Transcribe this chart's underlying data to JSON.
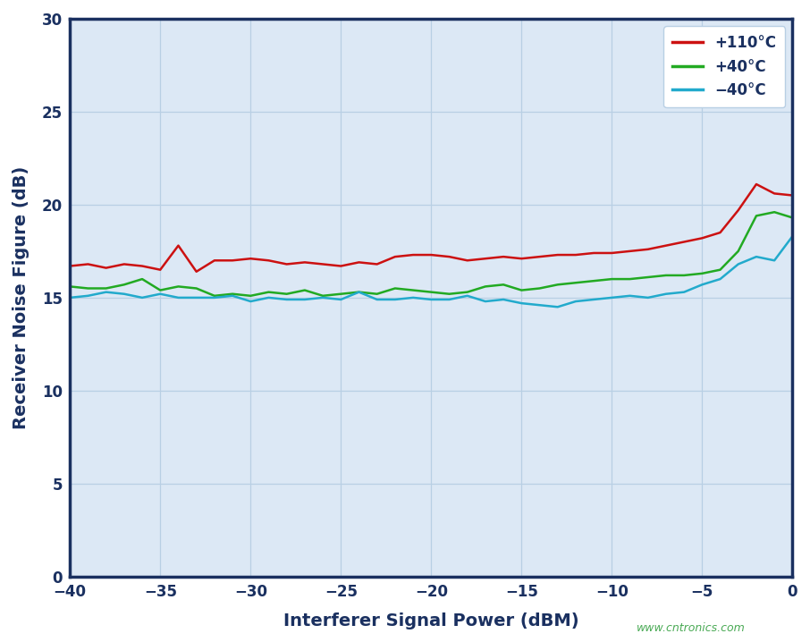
{
  "title": "",
  "xlabel": "Interferer Signal Power (dBM)",
  "ylabel": "Receiver Noise Figure (dB)",
  "xlim": [
    -40,
    0
  ],
  "ylim": [
    0,
    30
  ],
  "xticks": [
    -40,
    -35,
    -30,
    -25,
    -20,
    -15,
    -10,
    -5,
    0
  ],
  "yticks": [
    0,
    5,
    10,
    15,
    20,
    25,
    30
  ],
  "background_color": "#ffffff",
  "plot_bg_color": "#dce8f5",
  "grid_color": "#b8cfe4",
  "legend_labels": [
    "+110°C",
    "+40°C",
    "−40°C"
  ],
  "legend_colors": [
    "#cc1111",
    "#22aa22",
    "#22aacc"
  ],
  "watermark": "www.cntronics.com",
  "axis_color": "#1a3060",
  "series": {
    "red": {
      "x": [
        -40,
        -39,
        -38,
        -37,
        -36,
        -35,
        -34,
        -33,
        -32,
        -31,
        -30,
        -29,
        -28,
        -27,
        -26,
        -25,
        -24,
        -23,
        -22,
        -21,
        -20,
        -19,
        -18,
        -17,
        -16,
        -15,
        -14,
        -13,
        -12,
        -11,
        -10,
        -9,
        -8,
        -7,
        -6,
        -5,
        -4,
        -3,
        -2,
        -1,
        0
      ],
      "y": [
        16.7,
        16.8,
        16.6,
        16.8,
        16.7,
        16.5,
        17.8,
        16.4,
        17.0,
        17.0,
        17.1,
        17.0,
        16.8,
        16.9,
        16.8,
        16.7,
        16.9,
        16.8,
        17.2,
        17.3,
        17.3,
        17.2,
        17.0,
        17.1,
        17.2,
        17.1,
        17.2,
        17.3,
        17.3,
        17.4,
        17.4,
        17.5,
        17.6,
        17.8,
        18.0,
        18.2,
        18.5,
        19.7,
        21.1,
        20.6,
        20.5
      ]
    },
    "green": {
      "x": [
        -40,
        -39,
        -38,
        -37,
        -36,
        -35,
        -34,
        -33,
        -32,
        -31,
        -30,
        -29,
        -28,
        -27,
        -26,
        -25,
        -24,
        -23,
        -22,
        -21,
        -20,
        -19,
        -18,
        -17,
        -16,
        -15,
        -14,
        -13,
        -12,
        -11,
        -10,
        -9,
        -8,
        -7,
        -6,
        -5,
        -4,
        -3,
        -2,
        -1,
        0
      ],
      "y": [
        15.6,
        15.5,
        15.5,
        15.7,
        16.0,
        15.4,
        15.6,
        15.5,
        15.1,
        15.2,
        15.1,
        15.3,
        15.2,
        15.4,
        15.1,
        15.2,
        15.3,
        15.2,
        15.5,
        15.4,
        15.3,
        15.2,
        15.3,
        15.6,
        15.7,
        15.4,
        15.5,
        15.7,
        15.8,
        15.9,
        16.0,
        16.0,
        16.1,
        16.2,
        16.2,
        16.3,
        16.5,
        17.5,
        19.4,
        19.6,
        19.3
      ]
    },
    "cyan": {
      "x": [
        -40,
        -39,
        -38,
        -37,
        -36,
        -35,
        -34,
        -33,
        -32,
        -31,
        -30,
        -29,
        -28,
        -27,
        -26,
        -25,
        -24,
        -23,
        -22,
        -21,
        -20,
        -19,
        -18,
        -17,
        -16,
        -15,
        -14,
        -13,
        -12,
        -11,
        -10,
        -9,
        -8,
        -7,
        -6,
        -5,
        -4,
        -3,
        -2,
        -1,
        0
      ],
      "y": [
        15.0,
        15.1,
        15.3,
        15.2,
        15.0,
        15.2,
        15.0,
        15.0,
        15.0,
        15.1,
        14.8,
        15.0,
        14.9,
        14.9,
        15.0,
        14.9,
        15.3,
        14.9,
        14.9,
        15.0,
        14.9,
        14.9,
        15.1,
        14.8,
        14.9,
        14.7,
        14.6,
        14.5,
        14.8,
        14.9,
        15.0,
        15.1,
        15.0,
        15.2,
        15.3,
        15.7,
        16.0,
        16.8,
        17.2,
        17.0,
        18.3
      ]
    }
  }
}
